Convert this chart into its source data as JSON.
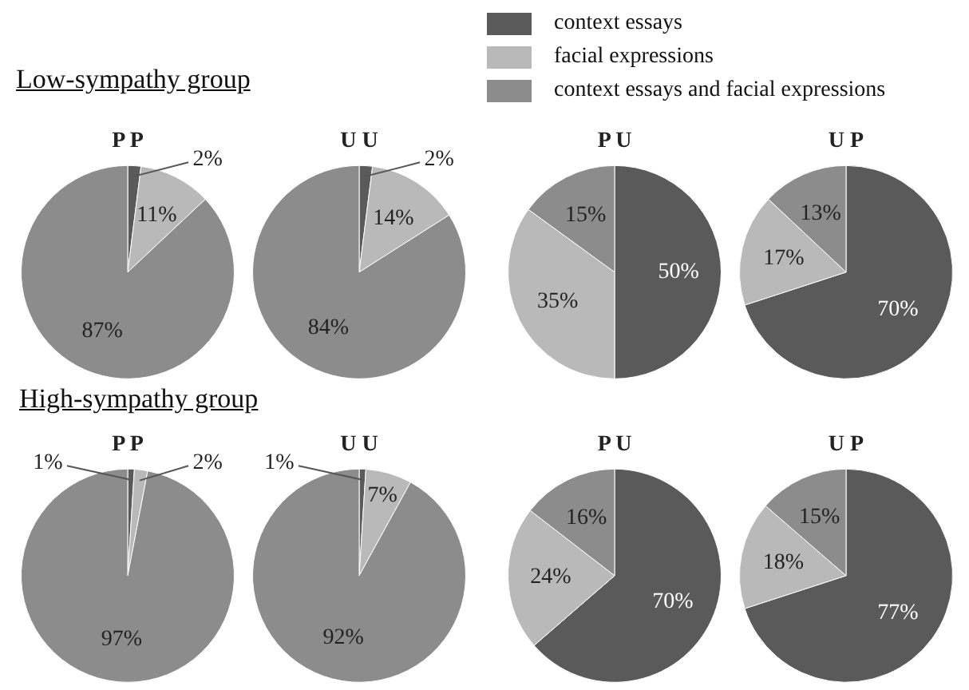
{
  "chart_data": [
    {
      "type": "pie",
      "subtitle": "Low-sympathy group",
      "title": "P P",
      "legend": "top right",
      "categories": [
        "context essays",
        "facial expressions",
        "context essays and facial expressions"
      ],
      "values": [
        2,
        11,
        87
      ],
      "value_labels": [
        "2%",
        "11%",
        "87%"
      ],
      "colors": [
        "#5a5a5a",
        "#b9b9b9",
        "#8c8c8c"
      ]
    },
    {
      "type": "pie",
      "title": "U U",
      "categories": [
        null,
        null,
        null
      ],
      "values": [
        2,
        14,
        84
      ],
      "value_labels": [
        "2%",
        "14%",
        "84%"
      ],
      "colors": [
        "#5a5a5a",
        "#b9b9b9",
        "#8c8c8c"
      ]
    },
    {
      "type": "pie",
      "title": "P U",
      "categories": [
        null,
        null,
        null
      ],
      "values": [
        50,
        35,
        15
      ],
      "value_labels": [
        "50%",
        "35%",
        "15%"
      ],
      "colors": [
        "#5a5a5a",
        "#b9b9b9",
        "#8c8c8c"
      ]
    },
    {
      "type": "pie",
      "title": "U P",
      "categories": [
        null,
        null,
        null
      ],
      "values": [
        70,
        17,
        13
      ],
      "value_labels": [
        "70%",
        "17%",
        "13%"
      ],
      "colors": [
        "#5a5a5a",
        "#b9b9b9",
        "#8c8c8c"
      ]
    },
    {
      "type": "pie",
      "subtitle": "High-sympathy group",
      "title": "P P",
      "categories": [
        null,
        null,
        null
      ],
      "values": [
        1,
        2,
        97
      ],
      "value_labels": [
        "1%",
        "2%",
        "97%"
      ],
      "colors": [
        "#5a5a5a",
        "#b9b9b9",
        "#8c8c8c"
      ]
    },
    {
      "type": "pie",
      "title": "U U",
      "categories": [
        null,
        null,
        null
      ],
      "values": [
        1,
        7,
        92
      ],
      "value_labels": [
        "1%",
        "7%",
        "92%"
      ],
      "colors": [
        "#5a5a5a",
        "#b9b9b9",
        "#8c8c8c"
      ]
    },
    {
      "type": "pie",
      "title": "P U",
      "categories": [
        null,
        null,
        null
      ],
      "values": [
        70,
        24,
        16
      ],
      "value_labels": [
        "70%",
        "24%",
        "16%"
      ],
      "colors": [
        "#5a5a5a",
        "#b9b9b9",
        "#8c8c8c"
      ]
    },
    {
      "type": "pie",
      "title": "U P",
      "categories": [
        null,
        null,
        null
      ],
      "values": [
        77,
        18,
        15
      ],
      "value_labels": [
        "77%",
        "18%",
        "15%"
      ],
      "colors": [
        "#5a5a5a",
        "#b9b9b9",
        "#8c8c8c"
      ]
    }
  ]
}
